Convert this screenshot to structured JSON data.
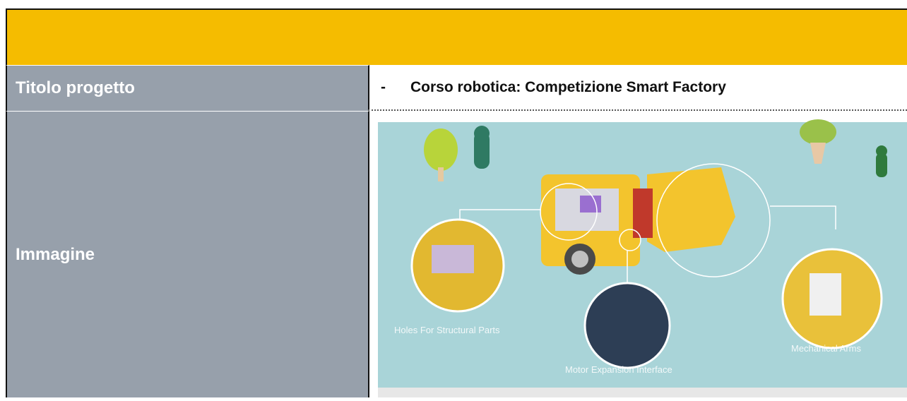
{
  "table": {
    "rows": [
      {
        "label": "Titolo progetto",
        "bullet": "-",
        "value": "Corso robotica: Competizione Smart Factory"
      },
      {
        "label": "Immagine",
        "image_labels": [
          "Holes For Structural Parts",
          "Motor Expansion Interface",
          "Mechanical Arms"
        ]
      }
    ]
  }
}
